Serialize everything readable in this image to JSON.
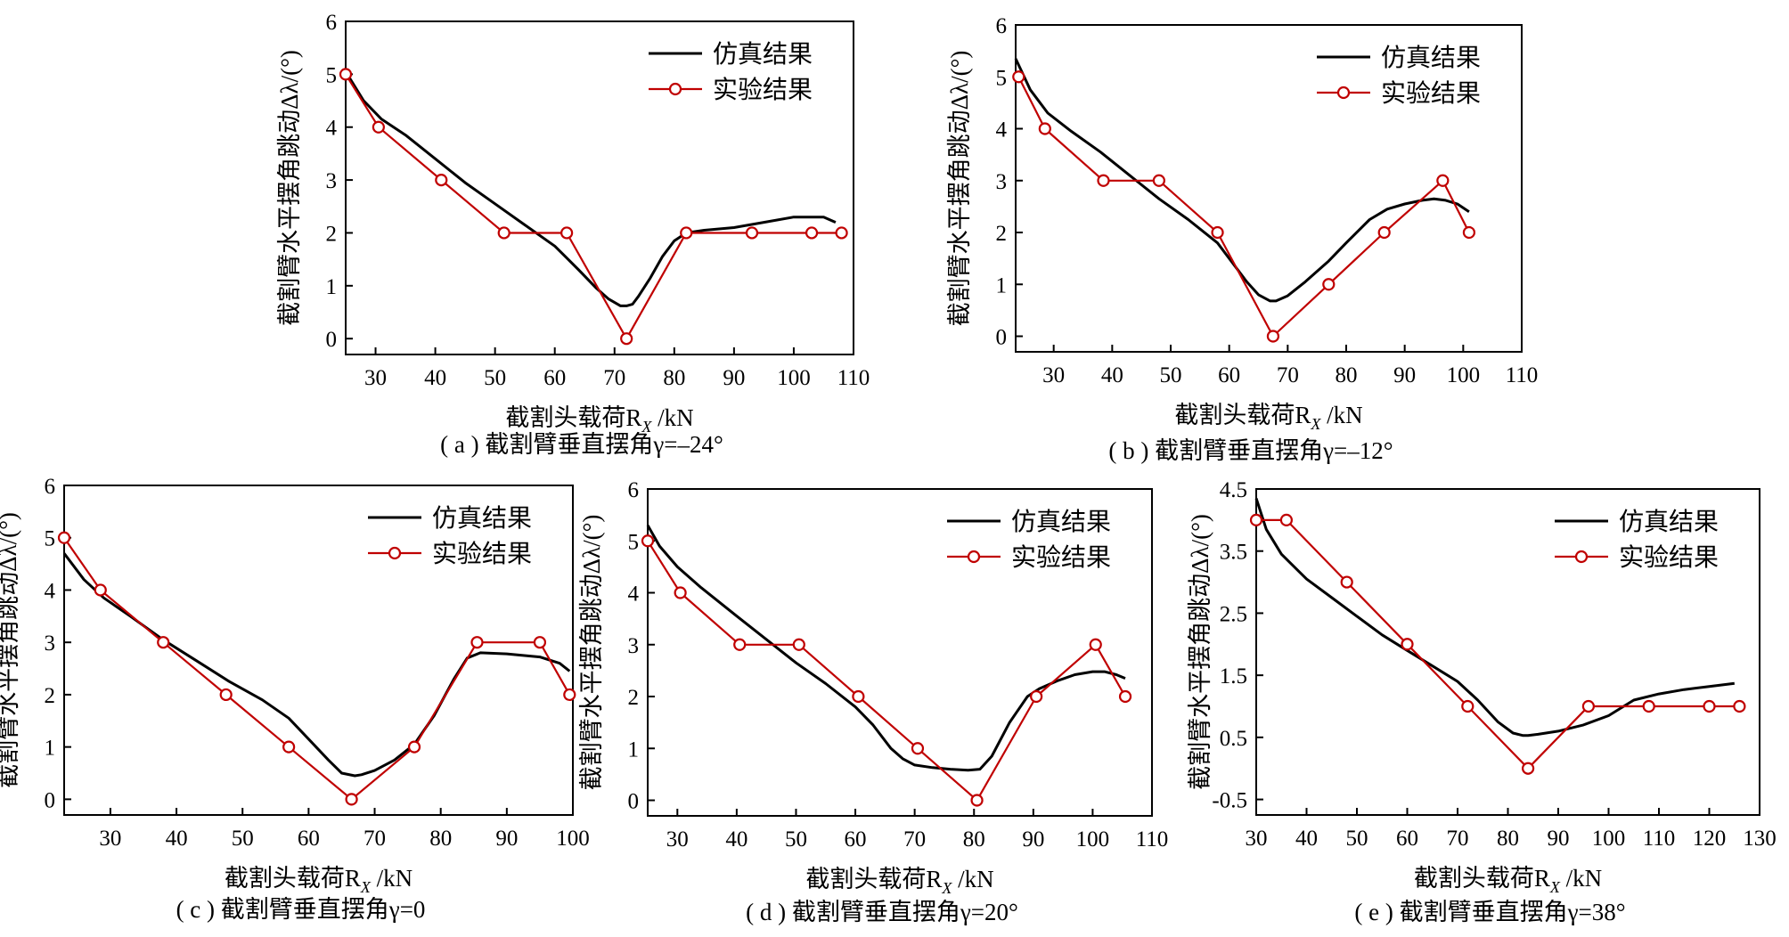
{
  "charts": [
    {
      "title": "",
      "caption": "( a ) 截割臂垂直摆角γ=–24°",
      "xlabel": "截割头载荷R_X /kN",
      "ylabel": "截割臂水平摆角跳动Δλ/(°)",
      "xlim": [
        25,
        110
      ],
      "ylim": [
        -0.3,
        6
      ],
      "xticks": [
        30,
        40,
        50,
        60,
        70,
        80,
        90,
        100,
        110
      ],
      "yticks": [
        0,
        1,
        2,
        3,
        4,
        5,
        6
      ],
      "ytick_labels": [
        "0",
        "1",
        "2",
        "3",
        "4",
        "5",
        "6"
      ],
      "legend": {
        "position": "top-right",
        "entries": [
          "仿真结果",
          "实验结果"
        ]
      },
      "series": [
        {
          "name": "仿真结果",
          "color": "#000000",
          "style": "line",
          "x": [
            25,
            28,
            31,
            35,
            40,
            45,
            50,
            55,
            60,
            64,
            67,
            69,
            71,
            72,
            73,
            74,
            76,
            78,
            80,
            82,
            85,
            90,
            95,
            100,
            103,
            105,
            107
          ],
          "y": [
            5.05,
            4.5,
            4.15,
            3.85,
            3.4,
            2.95,
            2.55,
            2.15,
            1.75,
            1.3,
            0.95,
            0.75,
            0.62,
            0.62,
            0.65,
            0.8,
            1.15,
            1.55,
            1.85,
            2.0,
            2.05,
            2.1,
            2.2,
            2.3,
            2.3,
            2.3,
            2.2
          ]
        },
        {
          "name": "实验结果",
          "color": "#c00000",
          "style": "line-marker",
          "x": [
            25,
            30.5,
            41,
            51.5,
            62,
            72,
            82,
            93,
            103,
            108
          ],
          "y": [
            5,
            4,
            3,
            2,
            2,
            0,
            2,
            2,
            2,
            2
          ]
        }
      ]
    },
    {
      "title": "",
      "caption": "( b ) 截割臂垂直摆角γ=–12°",
      "xlabel": "截割头载荷R_X /kN",
      "ylabel": "截割臂水平摆角跳动Δλ/(°)",
      "xlim": [
        23.5,
        110
      ],
      "ylim": [
        -0.3,
        6
      ],
      "xticks": [
        30,
        40,
        50,
        60,
        70,
        80,
        90,
        100,
        110
      ],
      "yticks": [
        0,
        1,
        2,
        3,
        4,
        5,
        6
      ],
      "ytick_labels": [
        "0",
        "1",
        "2",
        "3",
        "4",
        "5",
        "6"
      ],
      "legend": {
        "position": "top-right",
        "entries": [
          "仿真结果",
          "实验结果"
        ]
      },
      "series": [
        {
          "name": "仿真结果",
          "color": "#000000",
          "style": "line",
          "x": [
            23.5,
            26,
            29,
            33,
            38,
            43,
            48,
            53,
            58,
            61,
            63,
            65,
            67,
            68,
            70,
            73,
            77,
            80,
            84,
            87,
            90,
            93,
            95,
            97,
            99,
            101
          ],
          "y": [
            5.35,
            4.75,
            4.3,
            3.95,
            3.55,
            3.1,
            2.65,
            2.25,
            1.8,
            1.35,
            1.05,
            0.8,
            0.68,
            0.68,
            0.78,
            1.05,
            1.45,
            1.8,
            2.25,
            2.45,
            2.55,
            2.62,
            2.65,
            2.62,
            2.55,
            2.4
          ]
        },
        {
          "name": "实验结果",
          "color": "#c00000",
          "style": "line-marker",
          "x": [
            24,
            28.5,
            38.5,
            48,
            58,
            67.5,
            77,
            86.5,
            96.5,
            101
          ],
          "y": [
            5,
            4,
            3,
            3,
            2,
            0,
            1,
            2,
            3,
            2
          ]
        }
      ]
    },
    {
      "title": "",
      "caption": "( c ) 截割臂垂直摆角γ=0",
      "xlabel": "截割头载荷R_X /kN",
      "ylabel": "截割臂水平摆角跳动Δλ/(°)",
      "xlim": [
        23,
        100
      ],
      "ylim": [
        -0.3,
        6
      ],
      "xticks": [
        30,
        40,
        50,
        60,
        70,
        80,
        90,
        100
      ],
      "yticks": [
        0,
        1,
        2,
        3,
        4,
        5,
        6
      ],
      "ytick_labels": [
        "0",
        "1",
        "2",
        "3",
        "4",
        "5",
        "6"
      ],
      "legend": {
        "position": "top-right",
        "entries": [
          "仿真结果",
          "实验结果"
        ]
      },
      "series": [
        {
          "name": "仿真结果",
          "color": "#000000",
          "style": "line",
          "x": [
            23,
            26,
            29,
            33,
            38,
            43,
            48,
            53,
            57,
            60,
            63,
            65,
            67,
            68,
            70,
            73,
            76,
            79,
            82,
            84,
            86,
            90,
            95,
            98,
            99.5
          ],
          "y": [
            4.7,
            4.2,
            3.85,
            3.5,
            3.05,
            2.65,
            2.25,
            1.9,
            1.55,
            1.15,
            0.75,
            0.5,
            0.45,
            0.47,
            0.55,
            0.75,
            1.05,
            1.6,
            2.3,
            2.7,
            2.8,
            2.78,
            2.72,
            2.6,
            2.45
          ]
        },
        {
          "name": "实验结果",
          "color": "#c00000",
          "style": "line-marker",
          "x": [
            23,
            28.5,
            38,
            47.5,
            57,
            66.5,
            76,
            85.5,
            95,
            99.5
          ],
          "y": [
            5,
            4,
            3,
            2,
            1,
            0,
            1,
            3,
            3,
            2
          ]
        }
      ]
    },
    {
      "title": "",
      "caption": "( d ) 截割臂垂直摆角γ=20°",
      "xlabel": "截割头载荷R_X /kN",
      "ylabel": "截割臂水平摆角跳动Δλ/(°)",
      "xlim": [
        25,
        110
      ],
      "ylim": [
        -0.3,
        6
      ],
      "xticks": [
        30,
        40,
        50,
        60,
        70,
        80,
        90,
        100,
        110
      ],
      "yticks": [
        0,
        1,
        2,
        3,
        4,
        5,
        6
      ],
      "ytick_labels": [
        "0",
        "1",
        "2",
        "3",
        "4",
        "5",
        "6"
      ],
      "legend": {
        "position": "top-right",
        "entries": [
          "仿真结果",
          "实验结果"
        ]
      },
      "series": [
        {
          "name": "仿真结果",
          "color": "#000000",
          "style": "line",
          "x": [
            25,
            27,
            30,
            34,
            40,
            45,
            50,
            55,
            60,
            63,
            66,
            68,
            70,
            73,
            76,
            79,
            81,
            83,
            86,
            89,
            91,
            94,
            97,
            100,
            102,
            104,
            105.5
          ],
          "y": [
            5.3,
            4.9,
            4.5,
            4.1,
            3.55,
            3.1,
            2.65,
            2.25,
            1.8,
            1.45,
            1.0,
            0.8,
            0.68,
            0.63,
            0.6,
            0.58,
            0.6,
            0.85,
            1.5,
            2.0,
            2.15,
            2.3,
            2.42,
            2.48,
            2.48,
            2.42,
            2.35
          ]
        },
        {
          "name": "实验结果",
          "color": "#c00000",
          "style": "line-marker",
          "x": [
            25,
            30.5,
            40.5,
            50.5,
            60.5,
            70.5,
            80.5,
            90.5,
            100.5,
            105.5
          ],
          "y": [
            5,
            4,
            3,
            3,
            2,
            1,
            0,
            2,
            3,
            2
          ]
        }
      ]
    },
    {
      "title": "",
      "caption": "( e ) 截割臂垂直摆角γ=38°",
      "xlabel": "截割头载荷R_X /kN",
      "ylabel": "截割臂水平摆角跳动Δλ/(°)",
      "xlim": [
        30,
        130
      ],
      "ylim": [
        -0.75,
        4.5
      ],
      "xticks": [
        30,
        40,
        50,
        60,
        70,
        80,
        90,
        100,
        110,
        120,
        130
      ],
      "yticks": [
        -0.5,
        0.5,
        1.5,
        2.5,
        3.5,
        4.5
      ],
      "ytick_labels": [
        "-0.5",
        "0.5",
        "1.5",
        "2.5",
        "3.5",
        "4.5"
      ],
      "legend": {
        "position": "top-right",
        "entries": [
          "仿真结果",
          "实验结果"
        ]
      },
      "series": [
        {
          "name": "仿真结果",
          "color": "#000000",
          "style": "line",
          "x": [
            30,
            32,
            35,
            40,
            45,
            50,
            55,
            60,
            65,
            70,
            74,
            78,
            81,
            83,
            84,
            86,
            90,
            95,
            100,
            105,
            110,
            115,
            120,
            125
          ],
          "y": [
            4.35,
            3.85,
            3.45,
            3.05,
            2.75,
            2.45,
            2.15,
            1.9,
            1.65,
            1.4,
            1.1,
            0.75,
            0.57,
            0.53,
            0.53,
            0.55,
            0.6,
            0.7,
            0.85,
            1.1,
            1.2,
            1.27,
            1.32,
            1.37
          ]
        },
        {
          "name": "实验结果",
          "color": "#c00000",
          "style": "line-marker",
          "x": [
            30,
            36,
            48,
            60,
            72,
            84,
            96,
            108,
            120,
            126
          ],
          "y": [
            4,
            4,
            3,
            2,
            1,
            0,
            1,
            1,
            1,
            1
          ]
        }
      ]
    }
  ],
  "chart_data": [
    {
      "type": "line",
      "xlabel": "截割头载荷R_X /kN",
      "ylabel": "截割臂水平摆角跳动Δλ/(°)",
      "xlim": [
        25,
        110
      ],
      "ylim": [
        0,
        6
      ],
      "series": [
        {
          "name": "仿真结果",
          "x": [
            25,
            28,
            31,
            35,
            40,
            45,
            50,
            55,
            60,
            64,
            67,
            69,
            71,
            72,
            73,
            74,
            76,
            78,
            80,
            82,
            85,
            90,
            95,
            100,
            103,
            105,
            107
          ],
          "y": [
            5.05,
            4.5,
            4.15,
            3.85,
            3.4,
            2.95,
            2.55,
            2.15,
            1.75,
            1.3,
            0.95,
            0.75,
            0.62,
            0.62,
            0.65,
            0.8,
            1.15,
            1.55,
            1.85,
            2.0,
            2.05,
            2.1,
            2.2,
            2.3,
            2.3,
            2.3,
            2.2
          ]
        },
        {
          "name": "实验结果",
          "x": [
            25,
            30.5,
            41,
            51.5,
            62,
            72,
            82,
            93,
            103,
            108
          ],
          "y": [
            5,
            4,
            3,
            2,
            2,
            0,
            2,
            2,
            2,
            2
          ]
        }
      ]
    },
    {
      "type": "line",
      "xlabel": "截割头载荷R_X /kN",
      "ylabel": "截割臂水平摆角跳动Δλ/(°)",
      "xlim": [
        23.5,
        110
      ],
      "ylim": [
        0,
        6
      ],
      "series": [
        {
          "name": "仿真结果",
          "x": [
            23.5,
            26,
            29,
            33,
            38,
            43,
            48,
            53,
            58,
            61,
            63,
            65,
            67,
            68,
            70,
            73,
            77,
            80,
            84,
            87,
            90,
            93,
            95,
            97,
            99,
            101
          ],
          "y": [
            5.35,
            4.75,
            4.3,
            3.95,
            3.55,
            3.1,
            2.65,
            2.25,
            1.8,
            1.35,
            1.05,
            0.8,
            0.68,
            0.68,
            0.78,
            1.05,
            1.45,
            1.8,
            2.25,
            2.45,
            2.55,
            2.62,
            2.65,
            2.62,
            2.55,
            2.4
          ]
        },
        {
          "name": "实验结果",
          "x": [
            24,
            28.5,
            38.5,
            48,
            58,
            67.5,
            77,
            86.5,
            96.5,
            101
          ],
          "y": [
            5,
            4,
            3,
            3,
            2,
            0,
            1,
            2,
            3,
            2
          ]
        }
      ]
    },
    {
      "type": "line",
      "xlabel": "截割头载荷R_X /kN",
      "ylabel": "截割臂水平摆角跳动Δλ/(°)",
      "xlim": [
        23,
        100
      ],
      "ylim": [
        0,
        6
      ],
      "series": [
        {
          "name": "仿真结果",
          "x": [
            23,
            26,
            29,
            33,
            38,
            43,
            48,
            53,
            57,
            60,
            63,
            65,
            67,
            68,
            70,
            73,
            76,
            79,
            82,
            84,
            86,
            90,
            95,
            98,
            99.5
          ],
          "y": [
            4.7,
            4.2,
            3.85,
            3.5,
            3.05,
            2.65,
            2.25,
            1.9,
            1.55,
            1.15,
            0.75,
            0.5,
            0.45,
            0.47,
            0.55,
            0.75,
            1.05,
            1.6,
            2.3,
            2.7,
            2.8,
            2.78,
            2.72,
            2.6,
            2.45
          ]
        },
        {
          "name": "实验结果",
          "x": [
            23,
            28.5,
            38,
            47.5,
            57,
            66.5,
            76,
            85.5,
            95,
            99.5
          ],
          "y": [
            5,
            4,
            3,
            2,
            1,
            0,
            1,
            3,
            3,
            2
          ]
        }
      ]
    },
    {
      "type": "line",
      "xlabel": "截割头载荷R_X /kN",
      "ylabel": "截割臂水平摆角跳动Δλ/(°)",
      "xlim": [
        25,
        110
      ],
      "ylim": [
        0,
        6
      ],
      "series": [
        {
          "name": "仿真结果",
          "x": [
            25,
            27,
            30,
            34,
            40,
            45,
            50,
            55,
            60,
            63,
            66,
            68,
            70,
            73,
            76,
            79,
            81,
            83,
            86,
            89,
            91,
            94,
            97,
            100,
            102,
            104,
            105.5
          ],
          "y": [
            5.3,
            4.9,
            4.5,
            4.1,
            3.55,
            3.1,
            2.65,
            2.25,
            1.8,
            1.45,
            1.0,
            0.8,
            0.68,
            0.63,
            0.6,
            0.58,
            0.6,
            0.85,
            1.5,
            2.0,
            2.15,
            2.3,
            2.42,
            2.48,
            2.48,
            2.42,
            2.35
          ]
        },
        {
          "name": "实验结果",
          "x": [
            25,
            30.5,
            40.5,
            50.5,
            60.5,
            70.5,
            80.5,
            90.5,
            100.5,
            105.5
          ],
          "y": [
            5,
            4,
            3,
            3,
            2,
            1,
            0,
            2,
            3,
            2
          ]
        }
      ]
    },
    {
      "type": "line",
      "xlabel": "截割头载荷R_X /kN",
      "ylabel": "截割臂水平摆角跳动Δλ/(°)",
      "xlim": [
        30,
        130
      ],
      "ylim": [
        -0.5,
        4.5
      ],
      "series": [
        {
          "name": "仿真结果",
          "x": [
            30,
            32,
            35,
            40,
            45,
            50,
            55,
            60,
            65,
            70,
            74,
            78,
            81,
            83,
            84,
            86,
            90,
            95,
            100,
            105,
            110,
            115,
            120,
            125
          ],
          "y": [
            4.35,
            3.85,
            3.45,
            3.05,
            2.75,
            2.45,
            2.15,
            1.9,
            1.65,
            1.4,
            1.1,
            0.75,
            0.57,
            0.53,
            0.53,
            0.55,
            0.6,
            0.7,
            0.85,
            1.1,
            1.2,
            1.27,
            1.32,
            1.37
          ]
        },
        {
          "name": "实验结果",
          "x": [
            30,
            36,
            48,
            60,
            72,
            84,
            96,
            108,
            120,
            126
          ],
          "y": [
            4,
            4,
            3,
            2,
            1,
            0,
            1,
            1,
            1,
            1
          ]
        }
      ]
    }
  ]
}
